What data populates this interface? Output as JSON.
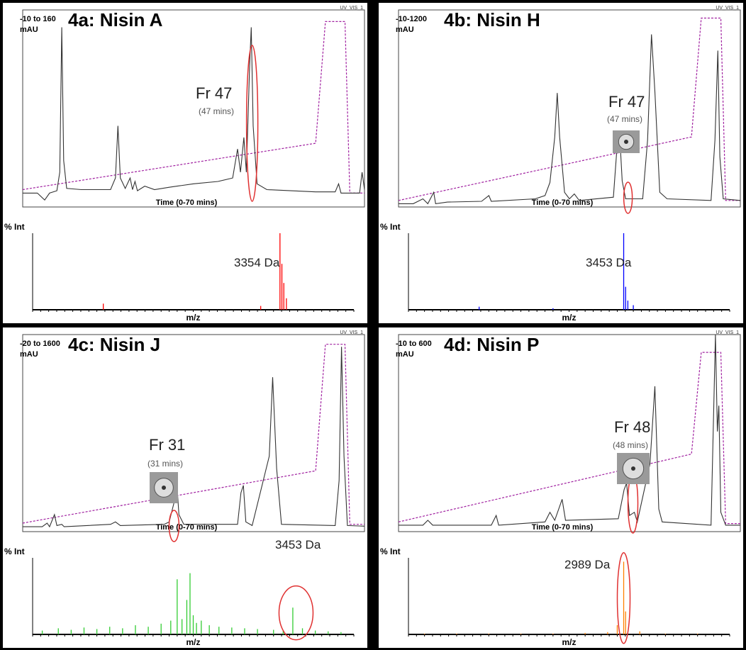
{
  "chart_data": [
    {
      "type": "line",
      "title": "4a: Nisin A",
      "range_label": "-10 to 160",
      "y_unit": "mAU",
      "detector": "UV_VIS_1",
      "fraction": "Fr 47",
      "fraction_time": "(47 mins)",
      "x_label": "Time (0-70 mins)",
      "color": "#333333",
      "xlim": [
        0,
        70
      ],
      "ylim": [
        -10,
        160
      ],
      "x": [
        0,
        3,
        4.5,
        5.5,
        7,
        7.6,
        8,
        8.4,
        9,
        12,
        18,
        19,
        19.5,
        20,
        21,
        22,
        22.5,
        23,
        23.5,
        25,
        27,
        30,
        35,
        40,
        43,
        44,
        44.6,
        45.3,
        45.8,
        46.5,
        46.8,
        47.2,
        48,
        50,
        60,
        64,
        64.7,
        65.2,
        69,
        69.5,
        70
      ],
      "values": [
        2,
        2,
        -4,
        2,
        4,
        20,
        145,
        30,
        6,
        5,
        5,
        15,
        60,
        15,
        6,
        15,
        5,
        12,
        4,
        8,
        5,
        7,
        10,
        12,
        15,
        40,
        20,
        50,
        20,
        115,
        145,
        60,
        10,
        5,
        3,
        3,
        10,
        2,
        2,
        20,
        5
      ],
      "gradient": {
        "color": "#a020a0",
        "x": [
          0,
          60,
          62,
          66,
          67,
          70
        ],
        "values": [
          5,
          45,
          150,
          150,
          2,
          2
        ]
      },
      "spectrum": {
        "type": "bar",
        "y_label": "% Int",
        "x_label": "m/z",
        "mass_label": "3354 Da",
        "color": "#ff0000",
        "xlim": [
          0,
          100
        ],
        "ylim": [
          0,
          100
        ],
        "x": [
          22,
          71,
          77,
          77.6,
          78.2,
          79
        ],
        "values": [
          8,
          5,
          100,
          60,
          35,
          15
        ]
      }
    },
    {
      "type": "line",
      "title": "4b: Nisin H",
      "range_label": "-10-1200",
      "y_unit": "mAU",
      "detector": "UV_VIS_1",
      "fraction": "Fr 47",
      "fraction_time": "(47 mins)",
      "x_label": "Time (0-70 mins)",
      "color": "#333333",
      "xlim": [
        0,
        70
      ],
      "ylim": [
        -10,
        1200
      ],
      "x": [
        0,
        3,
        5,
        6,
        7.2,
        7.6,
        10,
        17,
        18.5,
        19,
        28,
        30,
        31,
        32,
        32.5,
        33,
        34,
        35,
        36,
        37,
        44,
        44.8,
        45.3,
        45.8,
        46.5,
        50,
        51,
        51.8,
        52.5,
        53.5,
        55,
        64,
        64.8,
        65.4,
        65.8,
        66.5,
        70
      ],
      "values": [
        10,
        10,
        40,
        10,
        80,
        10,
        20,
        25,
        60,
        25,
        40,
        60,
        140,
        420,
        690,
        420,
        80,
        40,
        70,
        30,
        50,
        380,
        430,
        150,
        40,
        40,
        400,
        1050,
        700,
        80,
        40,
        30,
        400,
        950,
        300,
        40,
        30
      ],
      "gradient": {
        "color": "#a020a0",
        "x": [
          0,
          60,
          62,
          66,
          67,
          70
        ],
        "values": [
          30,
          420,
          1150,
          1150,
          30,
          30
        ]
      },
      "spectrum": {
        "type": "bar",
        "y_label": "% Int",
        "x_label": "m/z",
        "mass_label": "3453 Da",
        "color": "#0000ff",
        "xlim": [
          0,
          100
        ],
        "ylim": [
          0,
          100
        ],
        "x": [
          22,
          45,
          67,
          67.6,
          68.3,
          70
        ],
        "values": [
          4,
          2,
          100,
          30,
          12,
          6
        ]
      }
    },
    {
      "type": "line",
      "title": "4c: Nisin J",
      "range_label": "-20 to 1600",
      "y_unit": "mAU",
      "detector": "UV_VIS_1",
      "fraction": "Fr 31",
      "fraction_time": "(31 mins)",
      "x_label": "Time (0-70 mins)",
      "color": "#333333",
      "xlim": [
        0,
        70
      ],
      "ylim": [
        -20,
        1600
      ],
      "x": [
        0,
        4,
        5,
        5.5,
        6.5,
        7,
        8,
        8.5,
        18,
        19,
        20,
        29,
        30,
        31,
        31.5,
        32,
        33,
        44,
        44.7,
        45.2,
        45.7,
        47,
        50.5,
        51.2,
        52,
        53,
        64,
        64.8,
        65.3,
        65.8,
        66.5,
        70
      ],
      "values": [
        20,
        20,
        50,
        20,
        120,
        30,
        40,
        20,
        40,
        60,
        30,
        40,
        60,
        220,
        420,
        120,
        40,
        40,
        300,
        360,
        60,
        30,
        600,
        1250,
        500,
        40,
        30,
        400,
        1500,
        600,
        30,
        25
      ],
      "gradient": {
        "color": "#a020a0",
        "x": [
          0,
          60,
          62,
          66,
          67,
          70
        ],
        "values": [
          50,
          480,
          1520,
          1520,
          40,
          40
        ]
      },
      "spectrum": {
        "type": "bar",
        "y_label": "% Int",
        "x_label": "m/z",
        "mass_label": "3453 Da",
        "color": "#33cc33",
        "xlim": [
          0,
          100
        ],
        "ylim": [
          0,
          100
        ],
        "x": [
          3,
          8,
          12,
          16,
          20,
          24,
          28,
          32,
          36,
          40,
          43,
          45,
          46.5,
          48,
          49,
          50,
          51,
          52.5,
          55,
          58,
          62,
          66,
          70,
          75,
          78,
          81,
          84,
          88,
          92,
          96
        ],
        "values": [
          5,
          8,
          6,
          9,
          7,
          10,
          8,
          12,
          10,
          14,
          18,
          72,
          20,
          45,
          80,
          25,
          15,
          18,
          12,
          10,
          9,
          8,
          7,
          6,
          5,
          35,
          8,
          5,
          4,
          3
        ]
      }
    },
    {
      "type": "line",
      "title": "4d: Nisin P",
      "range_label": "-10 to 600",
      "y_unit": "mAU",
      "detector": "UV_VIS_1",
      "fraction": "Fr 48",
      "fraction_time": "(48 mins)",
      "x_label": "Time (0-70 mins)",
      "color": "#333333",
      "xlim": [
        0,
        70
      ],
      "ylim": [
        -10,
        600
      ],
      "x": [
        0,
        5,
        6,
        7,
        19,
        20,
        20.5,
        30,
        31,
        32,
        33.5,
        34.2,
        45,
        46.2,
        46.7,
        47.3,
        48.3,
        48.9,
        51.5,
        52.5,
        53.3,
        54,
        64,
        64.6,
        64.9,
        65.3,
        65.6,
        66,
        67,
        70
      ],
      "values": [
        10,
        10,
        25,
        10,
        10,
        40,
        10,
        20,
        50,
        25,
        90,
        25,
        30,
        120,
        140,
        40,
        50,
        20,
        200,
        440,
        60,
        20,
        10,
        400,
        600,
        300,
        380,
        50,
        10,
        10
      ],
      "gradient": {
        "color": "#a020a0",
        "x": [
          0,
          60,
          62,
          66,
          67,
          70
        ],
        "values": [
          20,
          230,
          545,
          545,
          15,
          15
        ]
      },
      "spectrum": {
        "type": "bar",
        "y_label": "% Int",
        "x_label": "m/z",
        "mass_label": "2989 Da",
        "color": "#ff8000",
        "xlim": [
          0,
          100
        ],
        "ylim": [
          0,
          100
        ],
        "x": [
          5,
          15,
          25,
          35,
          45,
          55,
          62,
          65,
          67,
          67.6,
          72,
          80,
          90
        ],
        "values": [
          1,
          1,
          1,
          1,
          1,
          2,
          3,
          12,
          95,
          30,
          4,
          1,
          1
        ]
      }
    }
  ]
}
